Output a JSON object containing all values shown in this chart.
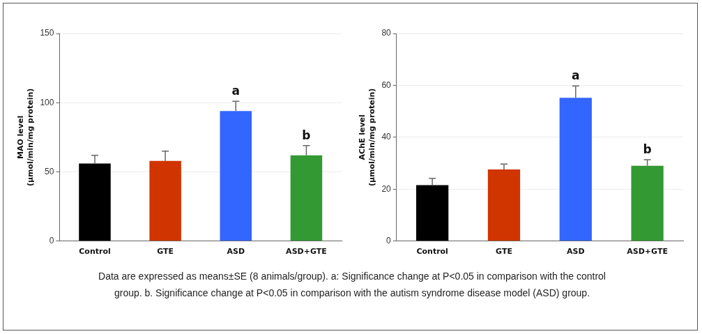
{
  "chart_data": [
    {
      "type": "bar",
      "ylabel": "MAO level\n(µmol/min/mg protein)",
      "categories": [
        "Control",
        "GTE",
        "ASD",
        "ASD+GTE"
      ],
      "values": [
        56,
        58,
        94,
        62
      ],
      "colors": [
        "#000000",
        "#d03500",
        "#3366ff",
        "#339933"
      ],
      "errors": [
        [
          56,
          62
        ],
        [
          58,
          65
        ],
        [
          94,
          101
        ],
        [
          62,
          69
        ]
      ],
      "ylim": [
        0,
        150
      ],
      "yticks": [
        0,
        50,
        100,
        150
      ],
      "grid": "y",
      "legend": false,
      "annotations": [
        {
          "text": "a",
          "x": "ASD",
          "y": 101
        },
        {
          "text": "b",
          "x": "ASD+GTE",
          "y": 69
        },
        "Data are expressed as means±SE (8 animals/group). a: Significance change at P<0.05 in comparison with the control group. b. Significance change at P<0.05 in comparison with the autism syndrome disease model (ASD) group."
      ]
    },
    {
      "type": "bar",
      "ylabel": "AChE level\n(µmol/min/mg protein)",
      "categories": [
        "Control",
        "GTE",
        "ASD",
        "ASD+GTE"
      ],
      "values": [
        21.6,
        27.6,
        55.2,
        29
      ],
      "colors": [
        "#000000",
        "#d03500",
        "#3366ff",
        "#339933"
      ],
      "errors": [
        [
          21.6,
          24.2
        ],
        [
          27.6,
          29.7
        ],
        [
          55.2,
          59.8
        ],
        [
          29,
          31.4
        ]
      ],
      "ylim": [
        0,
        80
      ],
      "yticks": [
        0,
        20,
        40,
        60,
        80
      ],
      "grid": "y",
      "legend": false,
      "annotations": [
        {
          "text": "a",
          "x": "ASD",
          "y": 59.8
        },
        {
          "text": "b",
          "x": "ASD+GTE",
          "y": 31.4
        }
      ]
    }
  ]
}
